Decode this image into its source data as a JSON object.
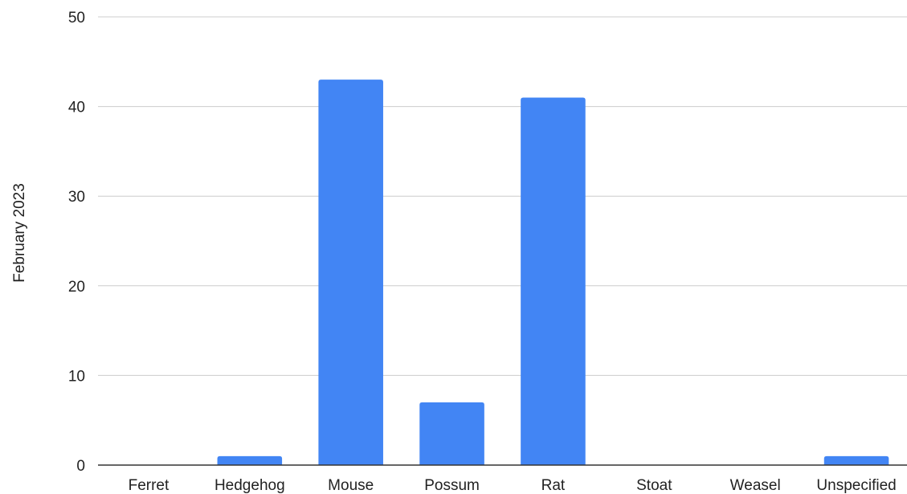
{
  "chart_data": {
    "type": "bar",
    "categories": [
      "Ferret",
      "Hedgehog",
      "Mouse",
      "Possum",
      "Rat",
      "Stoat",
      "Weasel",
      "Unspecified"
    ],
    "values": [
      0,
      1,
      43,
      7,
      41,
      0,
      0,
      1
    ],
    "ylabel": "February 2023",
    "xlabel": "",
    "ylim": [
      0,
      50
    ],
    "yticks": [
      0,
      10,
      20,
      30,
      40,
      50
    ],
    "grid": true,
    "bar_color": "#4285f4"
  }
}
